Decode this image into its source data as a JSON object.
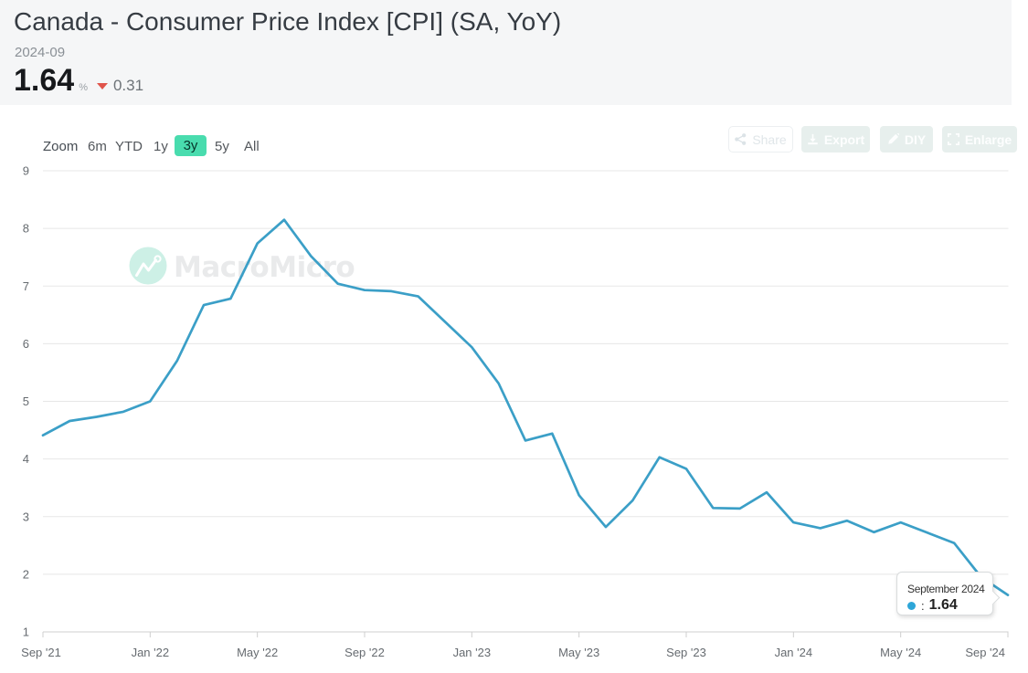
{
  "header": {
    "title": "Canada - Consumer Price Index [CPI] (SA, YoY)",
    "date": "2024-09",
    "value": "1.64",
    "unit": "%",
    "delta": "0.31",
    "delta_direction": "down"
  },
  "toolbar": {
    "zoom_label": "Zoom",
    "ranges": [
      "6m",
      "YTD",
      "1y",
      "3y",
      "5y",
      "All"
    ],
    "selected": "3y"
  },
  "actions": {
    "share": "Share",
    "export": "Export",
    "diy": "DIY",
    "enlarge": "Enlarge"
  },
  "watermark": {
    "text": "MacroMicro"
  },
  "tooltip": {
    "title": "September 2024",
    "separator": ":",
    "value": "1.64"
  },
  "colors": {
    "accent_mint": "#49dcae",
    "line": "#3b9fc7",
    "tooltip_dot": "#2ea6d8",
    "delta_red": "#e0544b",
    "header_bg": "#f5f6f7",
    "grid": "#e7e7e7",
    "axis": "#cfcfcf",
    "axis_label": "#666b70",
    "watermark_circle": "#cdf0e6",
    "watermark_text": "#e9eaeb"
  },
  "chart_data": {
    "type": "line",
    "title": "Canada - Consumer Price Index [CPI] (SA, YoY)",
    "xlabel": "",
    "ylabel": "",
    "ylim": [
      1,
      9
    ],
    "yticks": [
      1,
      2,
      3,
      4,
      5,
      6,
      7,
      8,
      9
    ],
    "grid": "horizontal",
    "legend": "off",
    "xtick_labels": [
      "Sep '21",
      "Jan '22",
      "May '22",
      "Sep '22",
      "Jan '23",
      "May '23",
      "Sep '23",
      "Jan '24",
      "May '24",
      "Sep '24"
    ],
    "xtick_every": 4,
    "x": [
      "2021-09",
      "2021-10",
      "2021-11",
      "2021-12",
      "2022-01",
      "2022-02",
      "2022-03",
      "2022-04",
      "2022-05",
      "2022-06",
      "2022-07",
      "2022-08",
      "2022-09",
      "2022-10",
      "2022-11",
      "2022-12",
      "2023-01",
      "2023-02",
      "2023-03",
      "2023-04",
      "2023-05",
      "2023-06",
      "2023-07",
      "2023-08",
      "2023-09",
      "2023-10",
      "2023-11",
      "2023-12",
      "2024-01",
      "2024-02",
      "2024-03",
      "2024-04",
      "2024-05",
      "2024-06",
      "2024-07",
      "2024-08",
      "2024-09"
    ],
    "values": [
      4.41,
      4.66,
      4.73,
      4.82,
      5.0,
      5.7,
      6.67,
      6.78,
      7.74,
      8.15,
      7.52,
      7.04,
      6.93,
      6.91,
      6.82,
      6.38,
      5.94,
      5.31,
      4.32,
      4.44,
      3.37,
      2.82,
      3.28,
      4.03,
      3.83,
      3.15,
      3.14,
      3.42,
      2.9,
      2.8,
      2.93,
      2.73,
      2.9,
      2.72,
      2.54,
      1.95,
      1.64
    ]
  }
}
